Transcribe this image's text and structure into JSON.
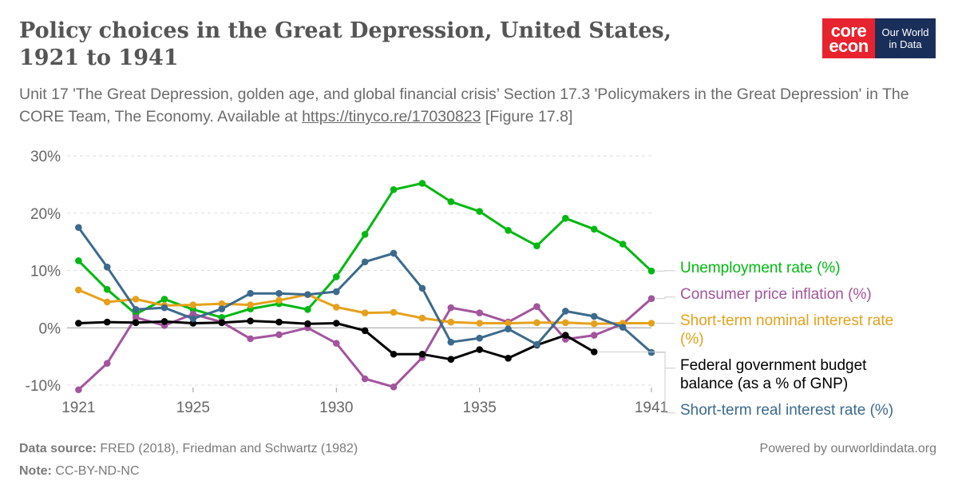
{
  "header": {
    "title": "Policy choices in the Great Depression, United States, 1921 to 1941",
    "subtitle_text": "Unit 17 'The Great Depression, golden age, and global financial crisis’ Section 17.3 'Policymakers in the Great Depression' in The CORE Team, The Economy. Available at",
    "subtitle_link": "https://tinyco.re/17030823",
    "subtitle_suffix": "[Figure 17.8]"
  },
  "logos": {
    "core_line1": "core",
    "core_line2": "econ",
    "owid_line1": "Our World",
    "owid_line2": "in Data"
  },
  "footer": {
    "source_label": "Data source:",
    "source_text": "FRED (2018), Friedman and Schwartz (1982)",
    "note_label": "Note:",
    "note_text": "CC-BY-ND-NC",
    "powered_by": "Powered by ourworldindata.org"
  },
  "chart_data": {
    "type": "line",
    "ylim": [
      -10,
      30
    ],
    "xlim": [
      1920.6,
      1941
    ],
    "yticks": [
      -10,
      0,
      10,
      20,
      30
    ],
    "ytick_labels": [
      "-10%",
      "0%",
      "10%",
      "20%",
      "30%"
    ],
    "xticks": [
      1921,
      1925,
      1930,
      1935,
      1941
    ],
    "xtick_labels": [
      "1921",
      "1925",
      "1930",
      "1935",
      "1941"
    ],
    "grid": "horizontal dashed",
    "legend": "right, line-end labels",
    "series": [
      {
        "name": "Unemployment rate (%)",
        "label_lines": [
          "Unemployment rate (%)"
        ],
        "color": "#00b811",
        "points": [
          [
            1921,
            11.7
          ],
          [
            1922,
            6.7
          ],
          [
            1923,
            2.4
          ],
          [
            1924,
            5.0
          ],
          [
            1925,
            3.2
          ],
          [
            1926,
            1.8
          ],
          [
            1927,
            3.3
          ],
          [
            1928,
            4.2
          ],
          [
            1929,
            3.2
          ],
          [
            1930,
            8.9
          ],
          [
            1931,
            16.3
          ],
          [
            1932,
            24.1
          ],
          [
            1933,
            25.2
          ],
          [
            1934,
            22.0
          ],
          [
            1935,
            20.3
          ],
          [
            1936,
            17.0
          ],
          [
            1937,
            14.3
          ],
          [
            1938,
            19.1
          ],
          [
            1939,
            17.2
          ],
          [
            1940,
            14.6
          ],
          [
            1941,
            9.9
          ]
        ]
      },
      {
        "name": "Consumer price inflation (%)",
        "label_lines": [
          "Consumer price inflation (%)"
        ],
        "color": "#a2559c",
        "points": [
          [
            1921,
            -10.8
          ],
          [
            1922,
            -6.2
          ],
          [
            1923,
            1.8
          ],
          [
            1924,
            0.4
          ],
          [
            1925,
            2.4
          ],
          [
            1926,
            1.0
          ],
          [
            1927,
            -1.9
          ],
          [
            1928,
            -1.2
          ],
          [
            1929,
            0.0
          ],
          [
            1930,
            -2.7
          ],
          [
            1931,
            -8.9
          ],
          [
            1932,
            -10.3
          ],
          [
            1933,
            -5.2
          ],
          [
            1934,
            3.5
          ],
          [
            1935,
            2.6
          ],
          [
            1936,
            1.0
          ],
          [
            1937,
            3.7
          ],
          [
            1938,
            -2.0
          ],
          [
            1939,
            -1.3
          ],
          [
            1940,
            0.7
          ],
          [
            1941,
            5.1
          ]
        ]
      },
      {
        "name": "Short-term nominal interest rate (%)",
        "label_lines": [
          "Short-term nominal interest rate",
          "(%)"
        ],
        "color": "#e5a11c",
        "points": [
          [
            1921,
            6.6
          ],
          [
            1922,
            4.5
          ],
          [
            1923,
            5.0
          ],
          [
            1924,
            3.9
          ],
          [
            1925,
            4.0
          ],
          [
            1926,
            4.2
          ],
          [
            1927,
            4.0
          ],
          [
            1928,
            4.8
          ],
          [
            1929,
            5.8
          ],
          [
            1930,
            3.6
          ],
          [
            1931,
            2.6
          ],
          [
            1932,
            2.7
          ],
          [
            1933,
            1.7
          ],
          [
            1934,
            1.0
          ],
          [
            1935,
            0.8
          ],
          [
            1936,
            0.8
          ],
          [
            1937,
            0.9
          ],
          [
            1938,
            0.9
          ],
          [
            1939,
            0.7
          ],
          [
            1940,
            0.8
          ],
          [
            1941,
            0.8
          ]
        ]
      },
      {
        "name": "Federal government budget balance (as a % of GNP)",
        "label_lines": [
          "Federal government budget",
          "balance (as a % of GNP)"
        ],
        "color": "#000000",
        "points": [
          [
            1921,
            0.8
          ],
          [
            1922,
            1.0
          ],
          [
            1923,
            0.9
          ],
          [
            1924,
            1.1
          ],
          [
            1925,
            0.8
          ],
          [
            1926,
            0.9
          ],
          [
            1927,
            1.2
          ],
          [
            1928,
            1.0
          ],
          [
            1929,
            0.7
          ],
          [
            1930,
            0.8
          ],
          [
            1931,
            -0.5
          ],
          [
            1932,
            -4.6
          ],
          [
            1933,
            -4.6
          ],
          [
            1934,
            -5.5
          ],
          [
            1935,
            -3.8
          ],
          [
            1936,
            -5.3
          ],
          [
            1937,
            -3.0
          ],
          [
            1938,
            -1.3
          ],
          [
            1939,
            -4.2
          ]
        ]
      },
      {
        "name": "Short-term real interest rate (%)",
        "label_lines": [
          "Short-term real interest rate (%)"
        ],
        "color": "#3c6a8c",
        "points": [
          [
            1921,
            17.5
          ],
          [
            1922,
            10.6
          ],
          [
            1923,
            3.2
          ],
          [
            1924,
            3.5
          ],
          [
            1925,
            1.6
          ],
          [
            1926,
            3.3
          ],
          [
            1927,
            6.0
          ],
          [
            1928,
            6.0
          ],
          [
            1929,
            5.8
          ],
          [
            1930,
            6.3
          ],
          [
            1931,
            11.5
          ],
          [
            1932,
            13.0
          ],
          [
            1933,
            6.9
          ],
          [
            1934,
            -2.5
          ],
          [
            1935,
            -1.8
          ],
          [
            1936,
            -0.2
          ],
          [
            1937,
            -2.9
          ],
          [
            1938,
            2.9
          ],
          [
            1939,
            2.0
          ],
          [
            1940,
            0.1
          ],
          [
            1941,
            -4.3
          ]
        ]
      }
    ]
  }
}
